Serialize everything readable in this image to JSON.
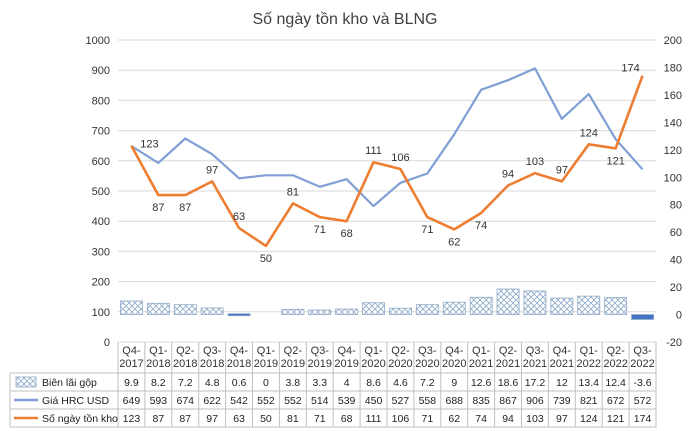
{
  "chart_data": {
    "type": "bar+line",
    "title": "Số ngày tồn kho và BLNG",
    "categories": [
      "Q4-2017",
      "Q1-2018",
      "Q2-2018",
      "Q3-2018",
      "Q4-2018",
      "Q1-2019",
      "Q2-2019",
      "Q3-2019",
      "Q4-2019",
      "Q1-2020",
      "Q2-2020",
      "Q3-2020",
      "Q4-2020",
      "Q1-2021",
      "Q2-2021",
      "Q3-2021",
      "Q4-2021",
      "Q1-2022",
      "Q2-2022",
      "Q3-2022"
    ],
    "category_labels": [
      [
        "Q4-",
        "2017"
      ],
      [
        "Q1-",
        "2018"
      ],
      [
        "Q2-",
        "2018"
      ],
      [
        "Q3-",
        "2018"
      ],
      [
        "Q4-",
        "2018"
      ],
      [
        "Q1-",
        "2019"
      ],
      [
        "Q2-",
        "2019"
      ],
      [
        "Q3-",
        "2019"
      ],
      [
        "Q4-",
        "2019"
      ],
      [
        "Q1-",
        "2020"
      ],
      [
        "Q2-",
        "2020"
      ],
      [
        "Q3-",
        "2020"
      ],
      [
        "Q4-",
        "2020"
      ],
      [
        "Q1-",
        "2021"
      ],
      [
        "Q2-",
        "2021"
      ],
      [
        "Q3-",
        "2021"
      ],
      [
        "Q4-",
        "2021"
      ],
      [
        "Q1-",
        "2022"
      ],
      [
        "Q2-",
        "2022"
      ],
      [
        "Q3-",
        "2022"
      ]
    ],
    "left_axis": {
      "min": 0,
      "max": 1000,
      "step": 100,
      "ticks": [
        "0",
        "100",
        "200",
        "300",
        "400",
        "500",
        "600",
        "700",
        "800",
        "900",
        "1000"
      ]
    },
    "right_axis": {
      "min": -20,
      "max": 200,
      "step": 20,
      "ticks": [
        "-20",
        "0",
        "20",
        "40",
        "60",
        "80",
        "100",
        "120",
        "140",
        "160",
        "180",
        "200"
      ]
    },
    "grid": true,
    "legend_placement": "data-table-below",
    "series": [
      {
        "name": "Biên lãi gộp",
        "type": "bar",
        "axis": "right",
        "color": "#9dc3e6",
        "values": [
          9.9,
          8.2,
          7.2,
          4.8,
          0.6,
          0,
          3.8,
          3.3,
          4,
          8.6,
          4.6,
          7.2,
          9,
          12.6,
          18.6,
          17.2,
          12,
          13.4,
          12.4,
          -3.6
        ],
        "labels": [
          "9.9",
          "8.2",
          "7.2",
          "4.8",
          "0.6",
          "0",
          "3.8",
          "3.3",
          "4",
          "8.6",
          "4.6",
          "7.2",
          "9",
          "12.6",
          "18.6",
          "17.2",
          "12",
          "13.4",
          "12.4",
          "-3.6"
        ]
      },
      {
        "name": "Giá HRC USD",
        "type": "line",
        "axis": "left",
        "color": "#7f9fd5",
        "values": [
          649,
          593,
          674,
          622,
          542,
          552,
          552,
          514,
          539,
          450,
          527,
          558,
          688,
          835,
          867,
          906,
          739,
          821,
          672,
          572
        ],
        "labels": [
          "649",
          "593",
          "674",
          "622",
          "542",
          "552",
          "552",
          "514",
          "539",
          "450",
          "527",
          "558",
          "688",
          "835",
          "867",
          "906",
          "739",
          "821",
          "672",
          "572"
        ]
      },
      {
        "name": "Số ngày tồn kho",
        "type": "line",
        "axis": "right",
        "color": "#ed7d31",
        "values": [
          123,
          87,
          87,
          97,
          63,
          50,
          81,
          71,
          68,
          111,
          106,
          71,
          62,
          74,
          94,
          103,
          97,
          124,
          121,
          174
        ],
        "labels": [
          "123",
          "87",
          "87",
          "97",
          "63",
          "50",
          "81",
          "71",
          "68",
          "111",
          "106",
          "71",
          "62",
          "74",
          "94",
          "103",
          "97",
          "124",
          "121",
          "174"
        ]
      }
    ]
  }
}
